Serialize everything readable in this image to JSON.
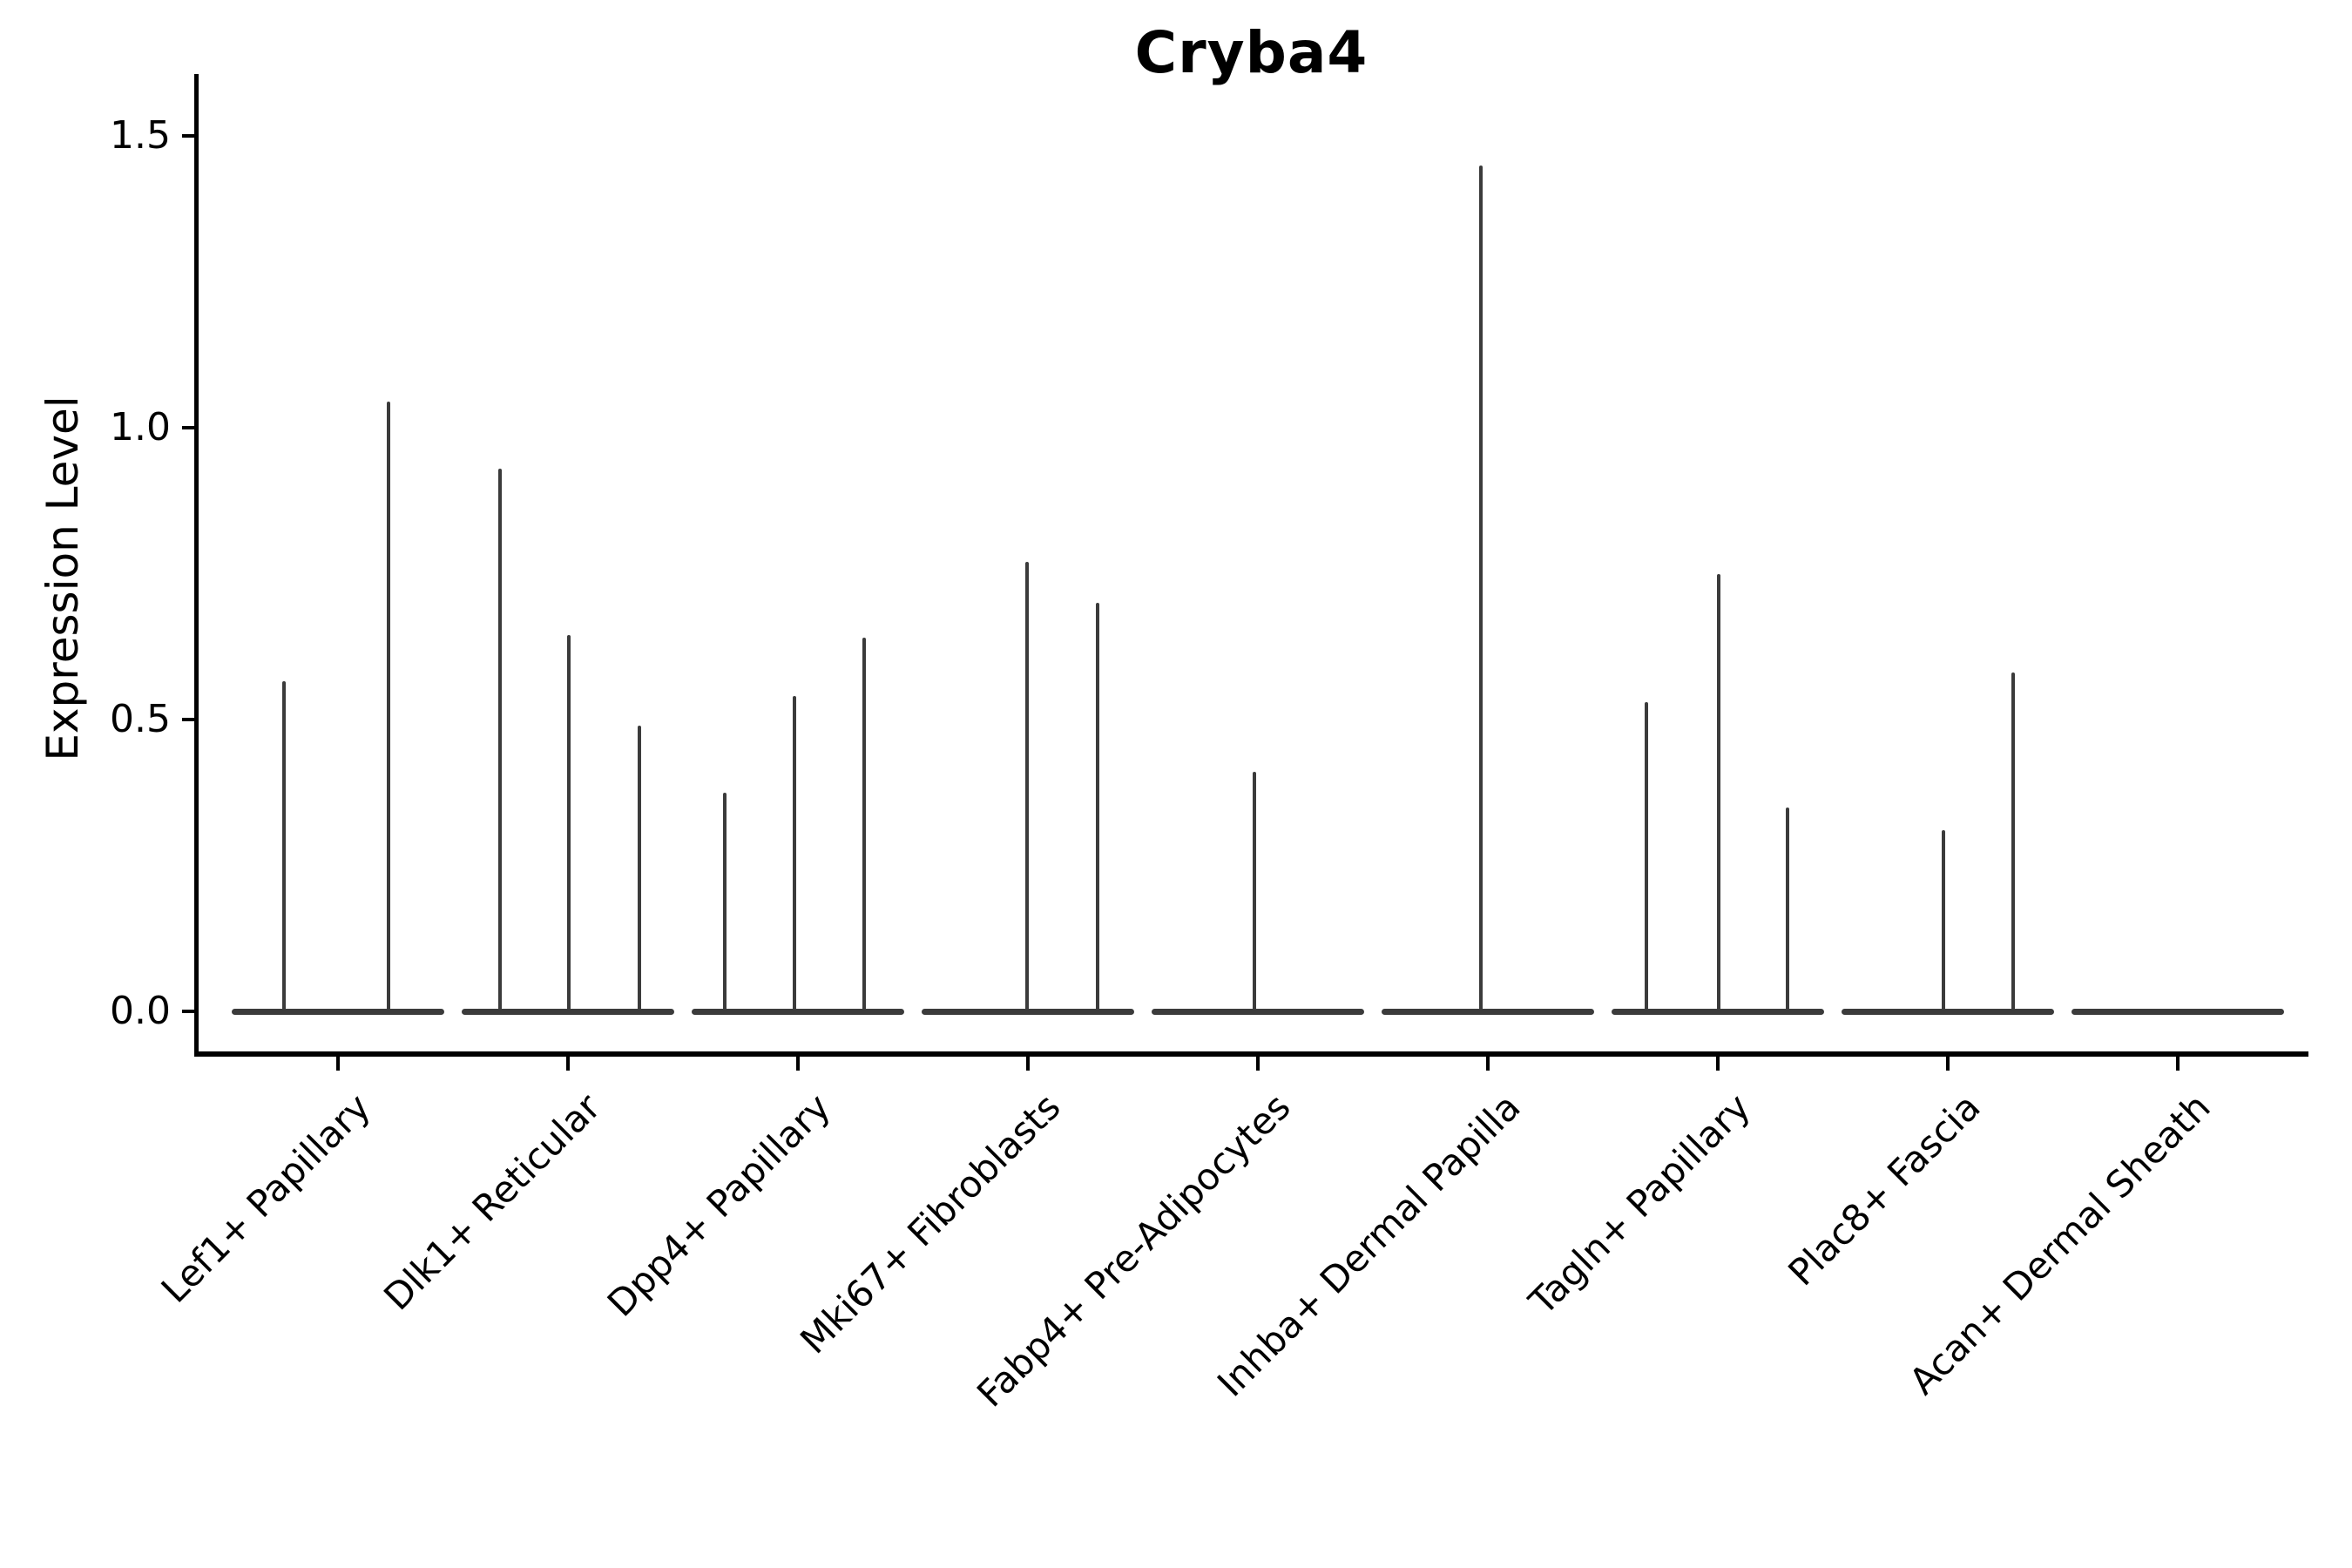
{
  "chart_data": {
    "type": "violin",
    "title": "Cryba4",
    "xlabel": "",
    "ylabel": "Expression Level",
    "yticks": [
      0.0,
      0.5,
      1.0,
      1.5
    ],
    "ylim": [
      -0.07,
      1.6
    ],
    "grid": false,
    "legend": "none",
    "style": "collapsed violins: flat baseline at 0 with thin spikes to the max expression value; sub-columns within each category are dodged sample violins",
    "colors": {
      "violin": "#3b3b3b",
      "axis": "#000000",
      "text": "#000000",
      "background": "#ffffff"
    },
    "categories": [
      {
        "label": "Lef1+ Papillary",
        "spikes": [
          {
            "offset": -62,
            "value": 0.565
          },
          {
            "offset": 58,
            "value": 1.045
          }
        ]
      },
      {
        "label": "Dlk1+ Reticular",
        "spikes": [
          {
            "offset": -78,
            "value": 0.93
          },
          {
            "offset": 1,
            "value": 0.645
          },
          {
            "offset": 82,
            "value": 0.49
          }
        ]
      },
      {
        "label": "Dpp4+ Papillary",
        "spikes": [
          {
            "offset": -84,
            "value": 0.375
          },
          {
            "offset": -4,
            "value": 0.54
          },
          {
            "offset": 76,
            "value": 0.64
          }
        ]
      },
      {
        "label": "Mki67+ Fibroblasts",
        "spikes": [
          {
            "offset": -1,
            "value": 0.77
          },
          {
            "offset": 80,
            "value": 0.7
          }
        ]
      },
      {
        "label": "Fabp4+ Pre-Adipocytes",
        "spikes": [
          {
            "offset": -4,
            "value": 0.41
          }
        ]
      },
      {
        "label": "Inhba+ Dermal Papilla",
        "spikes": [
          {
            "offset": -8,
            "value": 1.45
          }
        ]
      },
      {
        "label": "Tagln+ Papillary",
        "spikes": [
          {
            "offset": -82,
            "value": 0.53
          },
          {
            "offset": 1,
            "value": 0.75
          },
          {
            "offset": 80,
            "value": 0.35
          }
        ]
      },
      {
        "label": "Plac8+ Fascia",
        "spikes": [
          {
            "offset": -5,
            "value": 0.31
          },
          {
            "offset": 75,
            "value": 0.58
          }
        ]
      },
      {
        "label": "Acan+ Dermal Sheath",
        "spikes": []
      }
    ]
  }
}
